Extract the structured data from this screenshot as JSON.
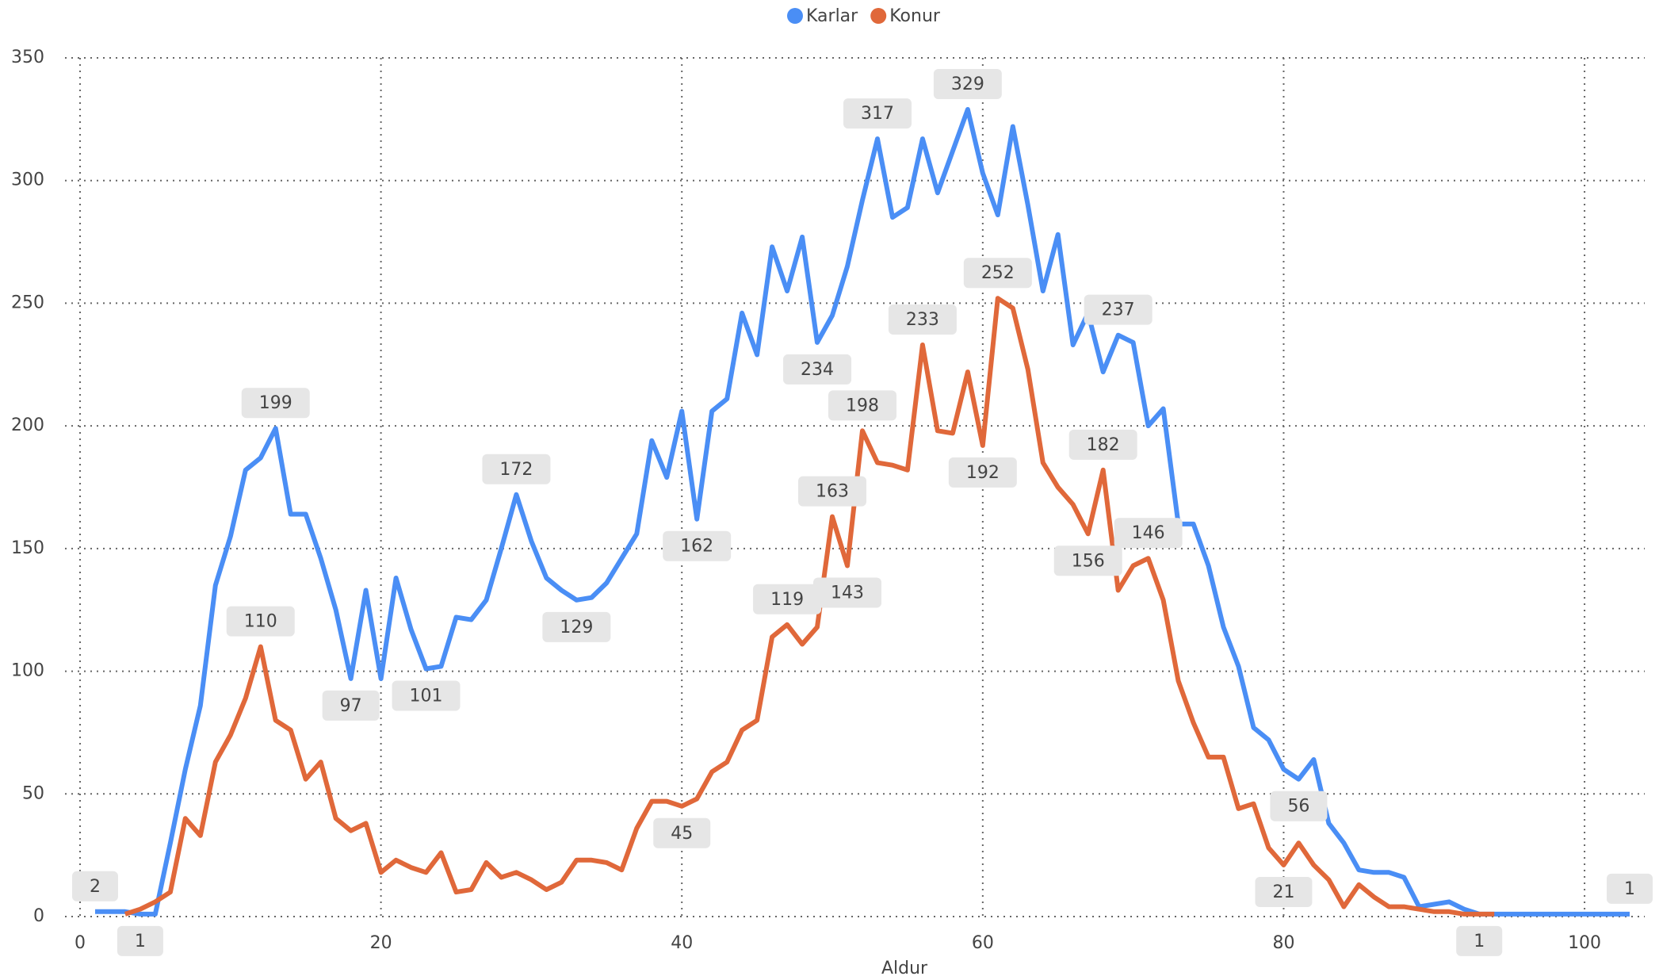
{
  "chart_data": {
    "type": "line",
    "x_label": "Aldur",
    "xlim": [
      -1,
      104
    ],
    "xticks": [
      0,
      20,
      40,
      60,
      80,
      100
    ],
    "ylim": [
      0,
      350
    ],
    "yticks": [
      0,
      50,
      100,
      150,
      200,
      250,
      300,
      350
    ],
    "grid": true,
    "legend": "top",
    "series": [
      {
        "name": "Karlar",
        "color": "#4a8ef5",
        "x": [
          1,
          2,
          3,
          4,
          5,
          6,
          7,
          8,
          9,
          10,
          11,
          12,
          13,
          14,
          15,
          16,
          17,
          18,
          19,
          20,
          21,
          22,
          23,
          24,
          25,
          26,
          27,
          28,
          29,
          30,
          31,
          32,
          33,
          34,
          35,
          36,
          37,
          38,
          39,
          40,
          41,
          42,
          43,
          44,
          45,
          46,
          47,
          48,
          49,
          50,
          51,
          52,
          53,
          54,
          55,
          56,
          57,
          58,
          59,
          60,
          61,
          62,
          63,
          64,
          65,
          66,
          67,
          68,
          69,
          70,
          71,
          72,
          73,
          74,
          75,
          76,
          77,
          78,
          79,
          80,
          81,
          82,
          83,
          84,
          85,
          86,
          87,
          88,
          89,
          90,
          91,
          92,
          93,
          94,
          95,
          96,
          97,
          98,
          99,
          100,
          101,
          102,
          103
        ],
        "values": [
          2,
          2,
          2,
          1,
          1,
          30,
          60,
          86,
          135,
          155,
          182,
          187,
          199,
          164,
          164,
          146,
          125,
          97,
          133,
          97,
          138,
          117,
          101,
          102,
          122,
          121,
          129,
          150,
          172,
          153,
          138,
          133,
          129,
          130,
          136,
          146,
          156,
          194,
          179,
          206,
          162,
          206,
          211,
          246,
          229,
          273,
          255,
          277,
          234,
          245,
          265,
          292,
          317,
          285,
          289,
          317,
          295,
          312,
          329,
          303,
          286,
          322,
          290,
          255,
          278,
          233,
          246,
          222,
          237,
          234,
          200,
          207,
          160,
          160,
          143,
          118,
          102,
          77,
          72,
          60,
          56,
          64,
          38,
          30,
          19,
          18,
          18,
          16,
          4,
          5,
          6,
          3,
          1,
          1,
          1,
          1,
          1,
          1,
          1,
          1,
          1,
          1,
          1
        ],
        "value_labels": [
          "2",
          null,
          null,
          "1",
          null,
          null,
          null,
          null,
          null,
          null,
          null,
          null,
          "199",
          null,
          null,
          null,
          null,
          "97",
          null,
          null,
          null,
          null,
          "101",
          null,
          null,
          null,
          null,
          null,
          "172",
          null,
          null,
          null,
          "129",
          null,
          null,
          null,
          null,
          null,
          null,
          null,
          "162",
          null,
          null,
          null,
          null,
          null,
          null,
          null,
          "234",
          null,
          null,
          null,
          "317",
          null,
          null,
          null,
          null,
          null,
          "329",
          null,
          null,
          null,
          null,
          null,
          null,
          null,
          null,
          null,
          "237",
          null,
          null,
          null,
          null,
          null,
          null,
          null,
          null,
          null,
          null,
          null,
          "56",
          null,
          null,
          null,
          null,
          null,
          null,
          null,
          null,
          null,
          null,
          null,
          "1",
          null,
          null,
          null,
          null,
          null,
          null,
          null,
          null,
          null,
          "1"
        ]
      },
      {
        "name": "Konur",
        "color": "#e0683a",
        "x": [
          3,
          4,
          5,
          6,
          7,
          8,
          9,
          10,
          11,
          12,
          13,
          14,
          15,
          16,
          17,
          18,
          19,
          20,
          21,
          22,
          23,
          24,
          25,
          26,
          27,
          28,
          29,
          30,
          31,
          32,
          33,
          34,
          35,
          36,
          37,
          38,
          39,
          40,
          41,
          42,
          43,
          44,
          45,
          46,
          47,
          48,
          49,
          50,
          51,
          52,
          53,
          54,
          55,
          56,
          57,
          58,
          59,
          60,
          61,
          62,
          63,
          64,
          65,
          66,
          67,
          68,
          69,
          70,
          71,
          72,
          73,
          74,
          75,
          76,
          77,
          78,
          79,
          80,
          81,
          82,
          83,
          84,
          85,
          86,
          87,
          88,
          89,
          90,
          91,
          92,
          93,
          94
        ],
        "values": [
          1,
          3,
          6,
          10,
          40,
          33,
          63,
          74,
          89,
          110,
          80,
          76,
          56,
          63,
          40,
          35,
          38,
          18,
          23,
          20,
          18,
          26,
          10,
          11,
          22,
          16,
          18,
          15,
          11,
          14,
          23,
          23,
          22,
          19,
          36,
          47,
          47,
          45,
          48,
          59,
          63,
          76,
          80,
          114,
          119,
          111,
          118,
          163,
          143,
          198,
          185,
          184,
          182,
          233,
          198,
          197,
          222,
          192,
          252,
          248,
          223,
          185,
          175,
          168,
          156,
          182,
          133,
          143,
          146,
          129,
          96,
          79,
          65,
          65,
          44,
          46,
          28,
          21,
          30,
          21,
          15,
          4,
          13,
          8,
          4,
          4,
          3,
          2,
          2,
          1,
          1,
          1
        ],
        "value_labels": [
          null,
          null,
          null,
          null,
          null,
          null,
          null,
          null,
          null,
          "110",
          null,
          null,
          null,
          null,
          null,
          null,
          null,
          null,
          null,
          null,
          null,
          null,
          null,
          null,
          null,
          null,
          null,
          null,
          null,
          null,
          null,
          null,
          null,
          null,
          null,
          null,
          null,
          "45",
          null,
          null,
          null,
          null,
          null,
          null,
          "119",
          null,
          null,
          "163",
          "143",
          "198",
          null,
          null,
          null,
          "233",
          null,
          null,
          null,
          "192",
          "252",
          null,
          null,
          null,
          null,
          null,
          "156",
          "182",
          null,
          null,
          "146",
          null,
          null,
          null,
          null,
          null,
          null,
          null,
          null,
          "21",
          null,
          null,
          null,
          null,
          null,
          null,
          null,
          null,
          null,
          null,
          null,
          null,
          null,
          null
        ]
      }
    ]
  }
}
